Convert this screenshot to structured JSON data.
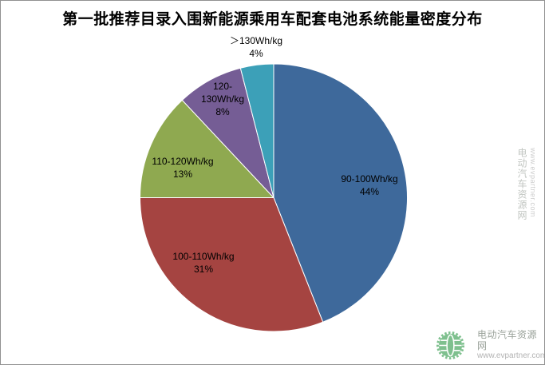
{
  "title": "第一批推荐目录入围新能源乘用车配套电池系统能量密度分布",
  "chart_data": {
    "type": "pie",
    "title": "第一批推荐目录入围新能源乘用车配套电池系统能量密度分布",
    "start_angle_deg": 0,
    "direction": "clockwise",
    "legend": "none",
    "labels": "inside, category name + percent",
    "slices": [
      {
        "label": "90-100Wh/kg",
        "value": 44,
        "pct": "44%",
        "color": "#3E699B"
      },
      {
        "label": "100-110Wh/kg",
        "value": 31,
        "pct": "31%",
        "color": "#A54441"
      },
      {
        "label": "110-120Wh/kg",
        "value": 13,
        "pct": "13%",
        "color": "#8FA950"
      },
      {
        "label": "120-130Wh/kg",
        "value": 8,
        "pct": "8%",
        "color": "#755D95"
      },
      {
        "label": "＞130Wh/kg",
        "value": 4,
        "pct": "4%",
        "color": "#3CA0B8"
      }
    ]
  },
  "watermark": {
    "side_text_line1": "电动汽车资源网",
    "side_text_line2": "www.evpartner.com",
    "logo_text": "电动汽车资源网",
    "logo_url": "www.evpartner.com",
    "logo_color": "#7EC08E"
  }
}
